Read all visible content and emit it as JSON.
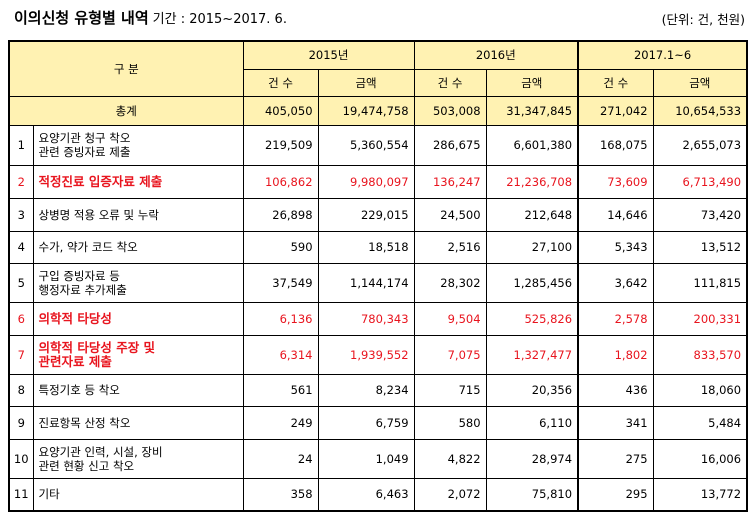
{
  "header": {
    "title": "이의신청 유형별 내역",
    "period": "기간 : 2015~2017. 6.",
    "unit": "(단위: 건, 천원)"
  },
  "table": {
    "corner": "구 분",
    "years": [
      "2015년",
      "2016년",
      "2017.1~6"
    ],
    "count_label": "건 수",
    "amount_label": "금액",
    "total": {
      "label": "총계",
      "values": [
        "405,050",
        "19,474,758",
        "503,008",
        "31,347,845",
        "271,042",
        "10,654,533"
      ]
    },
    "rows": [
      {
        "no": "1",
        "label": [
          "요양기관 청구 착오",
          "관련 증빙자료 제출"
        ],
        "highlight": false,
        "values": [
          "219,509",
          "5,360,554",
          "286,675",
          "6,601,380",
          "168,075",
          "2,655,073"
        ]
      },
      {
        "no": "2",
        "label": [
          "적정진료 입증자료 제출"
        ],
        "highlight": true,
        "values": [
          "106,862",
          "9,980,097",
          "136,247",
          "21,236,708",
          "73,609",
          "6,713,490"
        ]
      },
      {
        "no": "3",
        "label": [
          "상병명 적용 오류 및 누락"
        ],
        "highlight": false,
        "values": [
          "26,898",
          "229,015",
          "24,500",
          "212,648",
          "14,646",
          "73,420"
        ]
      },
      {
        "no": "4",
        "label": [
          "수가, 약가 코드 착오"
        ],
        "highlight": false,
        "values": [
          "590",
          "18,518",
          "2,516",
          "27,100",
          "5,343",
          "13,512"
        ]
      },
      {
        "no": "5",
        "label": [
          "구입 증빙자료 등",
          "행정자료 추가제출"
        ],
        "highlight": false,
        "values": [
          "37,549",
          "1,144,174",
          "28,302",
          "1,285,456",
          "3,642",
          "111,815"
        ]
      },
      {
        "no": "6",
        "label": [
          "의학적 타당성"
        ],
        "highlight": true,
        "values": [
          "6,136",
          "780,343",
          "9,504",
          "525,826",
          "2,578",
          "200,331"
        ]
      },
      {
        "no": "7",
        "label": [
          "의학적 타당성 주장 및",
          "관련자료 제출"
        ],
        "highlight": true,
        "values": [
          "6,314",
          "1,939,552",
          "7,075",
          "1,327,477",
          "1,802",
          "833,570"
        ]
      },
      {
        "no": "8",
        "label": [
          "특정기호 등 착오"
        ],
        "highlight": false,
        "values": [
          "561",
          "8,234",
          "715",
          "20,356",
          "436",
          "18,060"
        ]
      },
      {
        "no": "9",
        "label": [
          "진료항목 산정 착오"
        ],
        "highlight": false,
        "values": [
          "249",
          "6,759",
          "580",
          "6,110",
          "341",
          "5,484"
        ]
      },
      {
        "no": "10",
        "label": [
          "요양기관 인력, 시설, 장비",
          "관련 현황 신고 착오"
        ],
        "highlight": false,
        "values": [
          "24",
          "1,049",
          "4,822",
          "28,974",
          "275",
          "16,006"
        ]
      },
      {
        "no": "11",
        "label": [
          "기타"
        ],
        "highlight": false,
        "values": [
          "358",
          "6,463",
          "2,072",
          "75,810",
          "295",
          "13,772"
        ]
      }
    ],
    "highlight_color": "#E8141E",
    "header_bg": "#FFF2B2"
  }
}
